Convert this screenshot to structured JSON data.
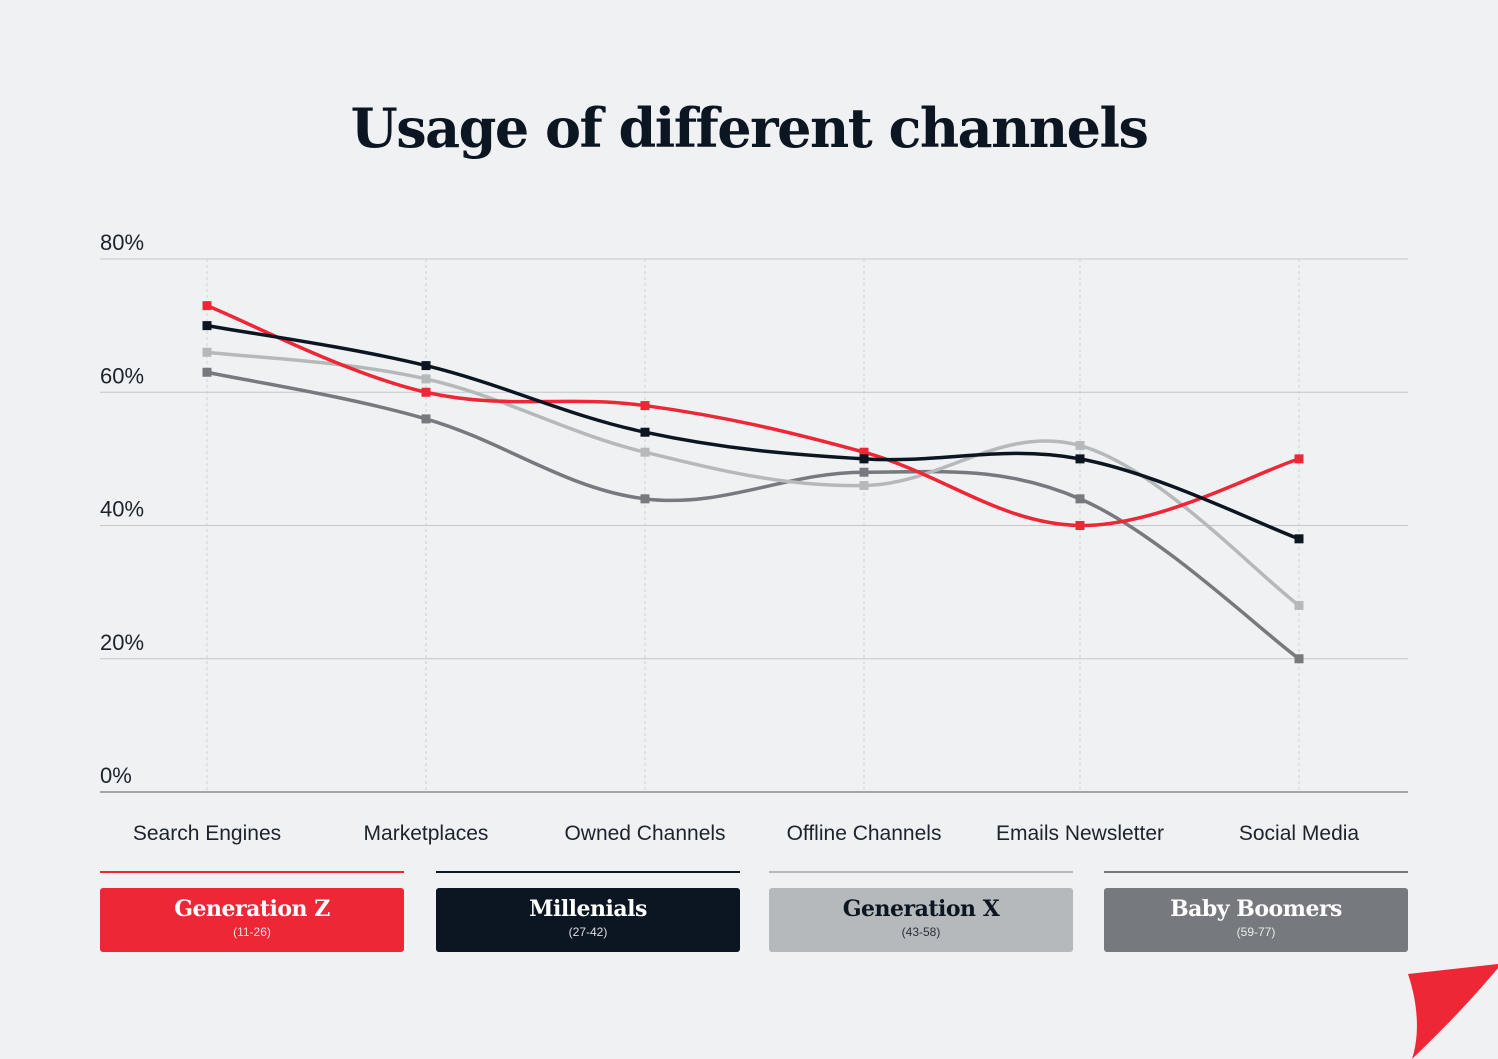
{
  "chart_data": {
    "type": "line",
    "title": "Usage of different channels",
    "xlabel": "",
    "ylabel": "",
    "ylim": [
      0,
      80
    ],
    "yticks": [
      0,
      20,
      40,
      60,
      80
    ],
    "ytick_labels": [
      "0%",
      "20%",
      "40%",
      "60%",
      "80%"
    ],
    "categories": [
      "Search Engines",
      "Marketplaces",
      "Owned Channels",
      "Offline Channels",
      "Emails Newsletter",
      "Social Media"
    ],
    "grid": true,
    "legend_position": "bottom",
    "series": [
      {
        "name": "Generation Z",
        "range": "(11-26)",
        "color": "#ee2737",
        "values": [
          73,
          60,
          58,
          51,
          40,
          50
        ]
      },
      {
        "name": "Millenials",
        "range": "(27-42)",
        "color": "#0b1622",
        "values": [
          70,
          64,
          54,
          50,
          50,
          38
        ]
      },
      {
        "name": "Generation X",
        "range": "(43-58)",
        "color": "#b6b9bc",
        "values": [
          66,
          62,
          51,
          46,
          52,
          28
        ]
      },
      {
        "name": "Baby Boomers",
        "range": "(59-77)",
        "color": "#76797e",
        "values": [
          63,
          56,
          44,
          48,
          44,
          20
        ]
      }
    ]
  },
  "legend_text_colors": [
    "#ffffff",
    "#ffffff",
    "#0b1622",
    "#ffffff"
  ],
  "legend_box_colors": [
    "#ee2737",
    "#0b1622",
    "#b6b9bc",
    "#76797e"
  ],
  "legend_line_colors": [
    "#ee2737",
    "#0b1622",
    "#b6b9bc",
    "#76797e"
  ],
  "corner_color": "#ee2737"
}
